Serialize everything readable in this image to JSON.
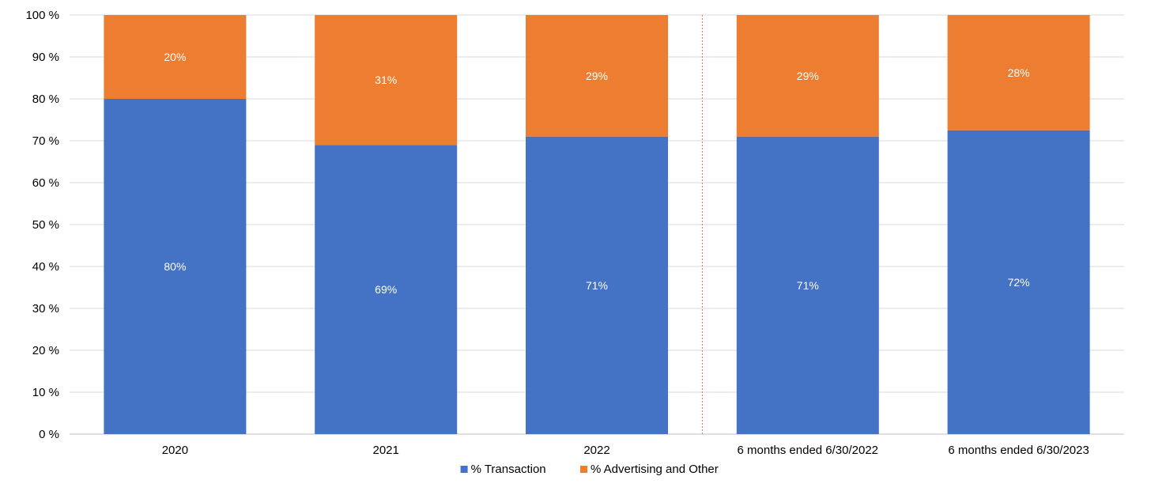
{
  "chart_data": {
    "type": "bar",
    "stacked": true,
    "title": "",
    "xlabel": "",
    "ylabel": "",
    "ylim": [
      0,
      100
    ],
    "y_tick_step": 10,
    "y_tick_suffix": " %",
    "grid": true,
    "legend_position": "bottom",
    "categories": [
      "2020",
      "2021",
      "2022",
      "6 months ended 6/30/2022",
      "6 months ended 6/30/2023"
    ],
    "divider_after_category_index": 2,
    "series": [
      {
        "name": "% Transaction",
        "color": "#4472C4",
        "values": [
          80,
          69,
          71,
          71,
          72.5
        ],
        "labels": [
          "80%",
          "69%",
          "71%",
          "71%",
          "72%"
        ]
      },
      {
        "name": "% Advertising and Other",
        "color": "#ED7D31",
        "values": [
          20,
          31,
          29,
          29,
          27.5
        ],
        "labels": [
          "20%",
          "31%",
          "29%",
          "29%",
          "28%"
        ]
      }
    ]
  }
}
